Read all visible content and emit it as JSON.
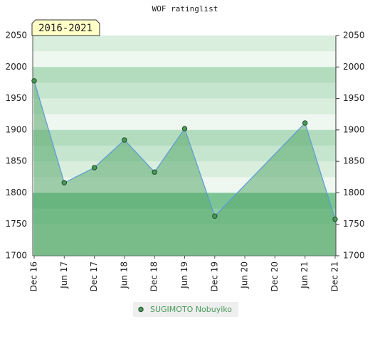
{
  "chart_data": {
    "type": "area",
    "title": "WOF ratinglist",
    "badge": "2016-2021",
    "categories": [
      "Dec 16",
      "Jun 17",
      "Dec 17",
      "Jun 18",
      "Dec 18",
      "Jun 19",
      "Dec 19",
      "Jun 20",
      "Dec 20",
      "Jun 21",
      "Dec 21"
    ],
    "series": [
      {
        "name": "SUGIMOTO Nobuyiko",
        "color": "#4a9a5a",
        "x": [
          "Dec 16",
          "Jun 17",
          "Dec 17",
          "Jun 18",
          "Dec 18",
          "Jun 19",
          "Dec 19",
          "Jun 21",
          "Dec 21"
        ],
        "values": [
          1978,
          1816,
          1840,
          1884,
          1833,
          1902,
          1763,
          1911,
          1758
        ]
      }
    ],
    "ylim": [
      1700,
      2050
    ],
    "yticks": [
      1700,
      1750,
      1800,
      1850,
      1900,
      1950,
      2000,
      2050
    ],
    "line_color": "#5b9bd5",
    "fill_color": "rgba(90,170,110,0.55)",
    "legend": "bottom"
  }
}
